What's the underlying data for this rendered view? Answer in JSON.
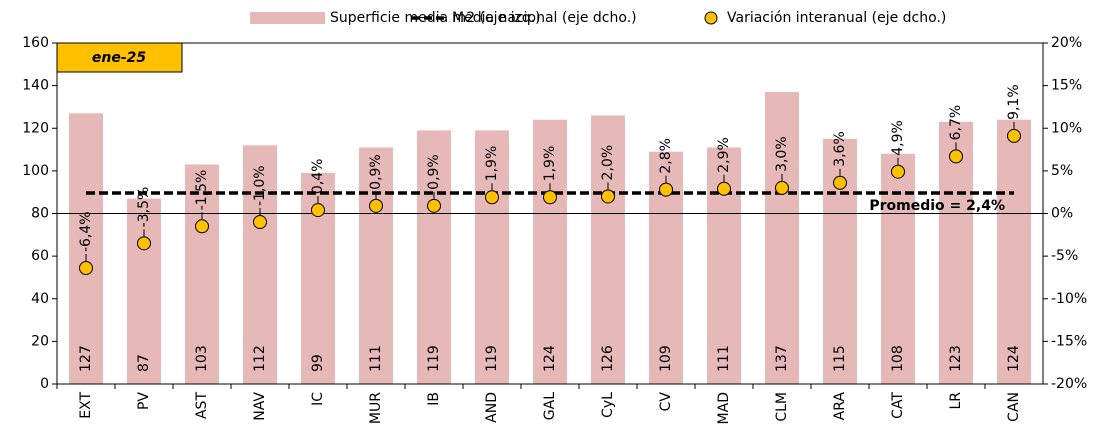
{
  "chart_data": {
    "type": "combo",
    "badge": "ene-25",
    "categories": [
      "EXT",
      "PV",
      "AST",
      "NAV",
      "IC",
      "MUR",
      "IB",
      "AND",
      "GAL",
      "CyL",
      "CV",
      "MAD",
      "CLM",
      "ARA",
      "CAT",
      "LR",
      "CAN"
    ],
    "series": [
      {
        "name": "Superficie media m2 (eje izq.)",
        "type": "bar",
        "color": "#e6b9b8",
        "values": [
          127,
          87,
          103,
          112,
          99,
          111,
          119,
          119,
          124,
          126,
          109,
          111,
          137,
          115,
          108,
          123,
          124
        ]
      },
      {
        "name": "Media nacional (eje dcho.)",
        "type": "line",
        "axis": "y2",
        "color": "#000000",
        "values": [
          2.4,
          2.4,
          2.4,
          2.4,
          2.4,
          2.4,
          2.4,
          2.4,
          2.4,
          2.4,
          2.4,
          2.4,
          2.4,
          2.4,
          2.4,
          2.4,
          2.4
        ]
      },
      {
        "name": "Variación interanual (eje dcho.)",
        "type": "scatter",
        "axis": "y2",
        "color": "#ffc000",
        "values": [
          -6.4,
          -3.5,
          -1.5,
          -1.0,
          0.4,
          0.9,
          0.9,
          1.9,
          1.9,
          2.0,
          2.8,
          2.9,
          3.0,
          3.6,
          4.9,
          6.7,
          9.1
        ],
        "value_labels": [
          "-6,4%",
          "-3,5%",
          "-1,5%",
          "-1,0%",
          "0,4%",
          "0,9%",
          "0,9%",
          "1,9%",
          "1,9%",
          "2,0%",
          "2,8%",
          "2,9%",
          "3,0%",
          "3,6%",
          "4,9%",
          "6,7%",
          "9,1%"
        ]
      }
    ],
    "annotations": [
      {
        "text": "Promedio = 2,4%",
        "value": 2.4
      }
    ],
    "ylim": [
      0,
      160
    ],
    "yticks": [
      0,
      20,
      40,
      60,
      80,
      100,
      120,
      140,
      160
    ],
    "y2lim": [
      -20,
      20
    ],
    "y2ticks": [
      {
        "value": -20,
        "label": "-20%"
      },
      {
        "value": -15,
        "label": "-15%"
      },
      {
        "value": -10,
        "label": "-10%"
      },
      {
        "value": -5,
        "label": "-5%"
      },
      {
        "value": 0,
        "label": "0%"
      },
      {
        "value": 5,
        "label": "5%"
      },
      {
        "value": 10,
        "label": "10%"
      },
      {
        "value": 15,
        "label": "15%"
      },
      {
        "value": 20,
        "label": "20%"
      }
    ]
  }
}
